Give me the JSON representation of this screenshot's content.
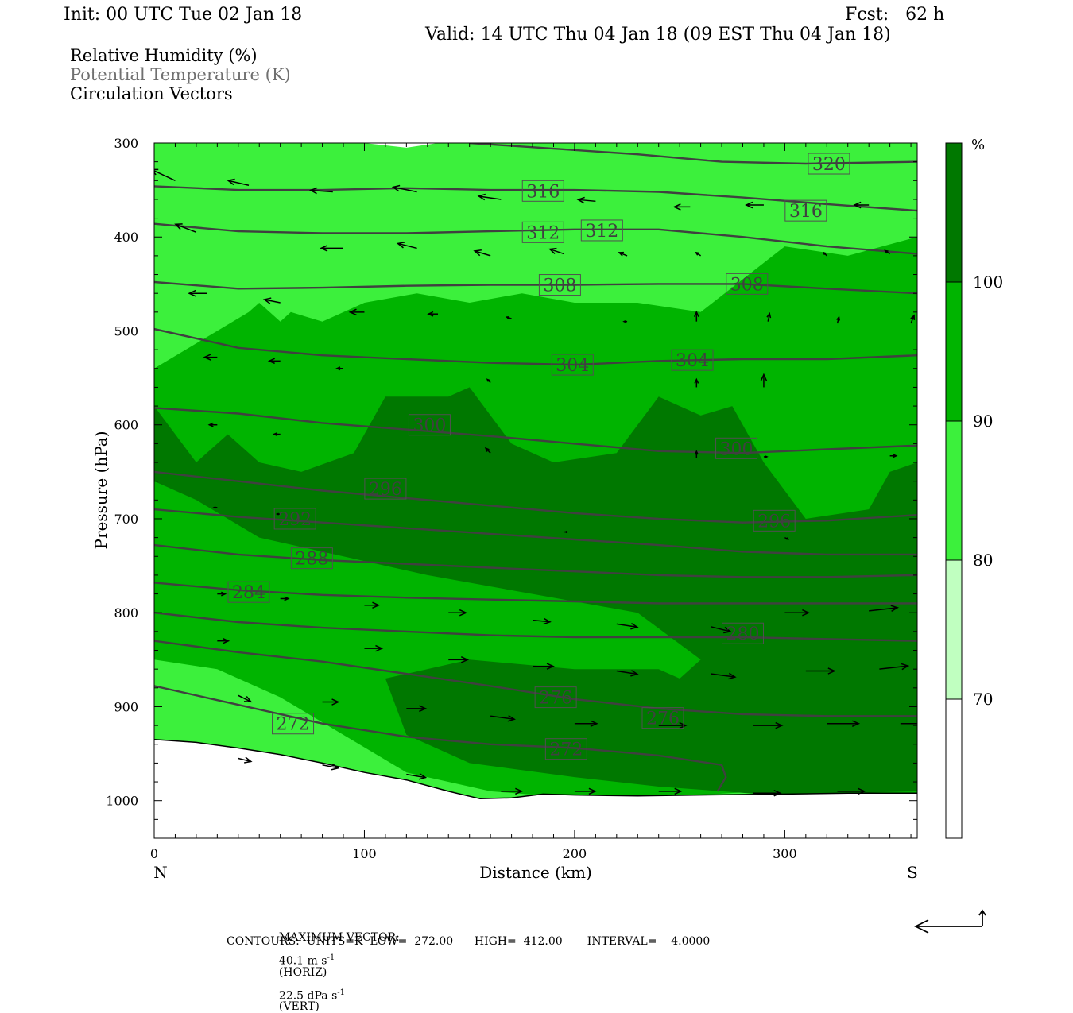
{
  "header": {
    "init": "Init: 00 UTC Tue 02 Jan 18",
    "fcst": "Fcst:   62 h",
    "valid": "Valid: 14 UTC Thu 04 Jan 18 (09 EST Thu 04 Jan 18)"
  },
  "fields": [
    {
      "label": "Relative Humidity (%)",
      "color": "#000000"
    },
    {
      "label": "Potential Temperature (K)",
      "color": "#707070"
    },
    {
      "label": "Circulation Vectors",
      "color": "#000000"
    }
  ],
  "chart_data": {
    "type": "cross-section",
    "xlabel": "Distance (km)",
    "ylabel": "Pressure (hPa)",
    "xlim": [
      0,
      363
    ],
    "ylim": [
      1040,
      300
    ],
    "x_ticks": [
      0,
      100,
      200,
      300
    ],
    "y_ticks": [
      300,
      400,
      500,
      600,
      700,
      800,
      900,
      1000
    ],
    "x_end_labels": {
      "left": "N",
      "right": "S"
    },
    "colorbar": {
      "unit": "%",
      "levels": [
        70,
        80,
        90,
        100
      ],
      "colors": [
        "#ffffff",
        "#c0ffc0",
        "#3cf03c",
        "#00b400",
        "#007800"
      ]
    },
    "terrain": {
      "x": [
        0,
        20,
        40,
        60,
        80,
        100,
        120,
        140,
        155,
        170,
        185,
        200,
        230,
        260,
        300,
        330,
        363
      ],
      "p": [
        935,
        938,
        944,
        951,
        960,
        970,
        978,
        990,
        998,
        997,
        993,
        994,
        995,
        994,
        993,
        992,
        992
      ]
    },
    "theta_contours": [
      {
        "value": 272,
        "x": [
          0,
          40,
          80,
          120,
          160,
          200,
          240,
          270,
          272,
          268
        ],
        "p": [
          878,
          898,
          918,
          932,
          940,
          944,
          952,
          962,
          975,
          990
        ]
      },
      {
        "value": 276,
        "x": [
          0,
          40,
          80,
          120,
          160,
          200,
          240,
          280,
          320,
          363
        ],
        "p": [
          830,
          842,
          852,
          865,
          878,
          892,
          902,
          908,
          910,
          910
        ]
      },
      {
        "value": 280,
        "x": [
          0,
          40,
          80,
          120,
          160,
          200,
          240,
          280,
          320,
          363
        ],
        "p": [
          800,
          810,
          816,
          820,
          824,
          826,
          826,
          826,
          828,
          830
        ]
      },
      {
        "value": 284,
        "x": [
          0,
          40,
          80,
          120,
          160,
          200,
          240,
          280,
          320,
          363
        ],
        "p": [
          768,
          776,
          781,
          784,
          786,
          788,
          790,
          790,
          790,
          790
        ]
      },
      {
        "value": 288,
        "x": [
          0,
          40,
          80,
          120,
          160,
          200,
          240,
          280,
          320,
          363
        ],
        "p": [
          728,
          738,
          744,
          748,
          752,
          756,
          760,
          762,
          762,
          760
        ]
      },
      {
        "value": 292,
        "x": [
          0,
          40,
          80,
          120,
          160,
          200,
          240,
          280,
          320,
          363
        ],
        "p": [
          690,
          698,
          704,
          710,
          716,
          722,
          728,
          735,
          738,
          738
        ]
      },
      {
        "value": 296,
        "x": [
          0,
          40,
          80,
          120,
          160,
          200,
          240,
          280,
          320,
          363
        ],
        "p": [
          650,
          660,
          670,
          678,
          686,
          694,
          700,
          704,
          702,
          696
        ]
      },
      {
        "value": 300,
        "x": [
          0,
          40,
          80,
          120,
          160,
          200,
          240,
          280,
          320,
          363
        ],
        "p": [
          582,
          588,
          598,
          605,
          612,
          620,
          628,
          630,
          626,
          622
        ]
      },
      {
        "value": 304,
        "x": [
          0,
          40,
          80,
          120,
          160,
          200,
          240,
          280,
          320,
          363
        ],
        "p": [
          498,
          518,
          526,
          530,
          534,
          536,
          532,
          530,
          530,
          526
        ]
      },
      {
        "value": 308,
        "x": [
          0,
          40,
          80,
          120,
          160,
          200,
          240,
          280,
          320,
          363
        ],
        "p": [
          448,
          455,
          454,
          452,
          451,
          451,
          450,
          450,
          455,
          460
        ]
      },
      {
        "value": 312,
        "x": [
          0,
          40,
          80,
          120,
          160,
          200,
          240,
          280,
          320,
          363
        ],
        "p": [
          386,
          394,
          396,
          396,
          394,
          392,
          392,
          400,
          410,
          418
        ]
      },
      {
        "value": 316,
        "x": [
          0,
          40,
          80,
          120,
          160,
          200,
          240,
          280,
          320,
          363
        ],
        "p": [
          346,
          350,
          350,
          348,
          350,
          350,
          352,
          358,
          365,
          372
        ]
      },
      {
        "value": 320,
        "x": [
          150,
          190,
          230,
          270,
          310,
          363
        ],
        "p": [
          300,
          306,
          312,
          320,
          322,
          320
        ]
      }
    ],
    "contour_labels": [
      {
        "text": "320",
        "x": 321,
        "p": 322
      },
      {
        "text": "316",
        "x": 185,
        "p": 351
      },
      {
        "text": "316",
        "x": 310,
        "p": 372
      },
      {
        "text": "312",
        "x": 185,
        "p": 395
      },
      {
        "text": "312",
        "x": 213,
        "p": 393
      },
      {
        "text": "308",
        "x": 193,
        "p": 451
      },
      {
        "text": "308",
        "x": 282,
        "p": 450
      },
      {
        "text": "304",
        "x": 199,
        "p": 536
      },
      {
        "text": "304",
        "x": 256,
        "p": 531
      },
      {
        "text": "300",
        "x": 131,
        "p": 600
      },
      {
        "text": "300",
        "x": 277,
        "p": 625
      },
      {
        "text": "296",
        "x": 110,
        "p": 668
      },
      {
        "text": "296",
        "x": 295,
        "p": 702
      },
      {
        "text": "292",
        "x": 67,
        "p": 700
      },
      {
        "text": "288",
        "x": 75,
        "p": 742
      },
      {
        "text": "284",
        "x": 45,
        "p": 778
      },
      {
        "text": "280",
        "x": 280,
        "p": 822
      },
      {
        "text": "276",
        "x": 191,
        "p": 890
      },
      {
        "text": "276",
        "x": 242,
        "p": 912
      },
      {
        "text": "272",
        "x": 66,
        "p": 918
      },
      {
        "text": "272",
        "x": 196,
        "p": 945
      }
    ],
    "rh_regions": [
      {
        "level": 80,
        "x": [
          0,
          363,
          363,
          0
        ],
        "p": [
          300,
          300,
          1000,
          1000
        ]
      },
      {
        "level": 70,
        "x": [
          15,
          60,
          100,
          120,
          135,
          150,
          170,
          185,
          200,
          230,
          250,
          290,
          330,
          363
        ],
        "p": [
          300,
          300,
          300,
          305,
          300,
          300,
          300,
          300,
          300,
          300,
          300,
          300,
          300,
          300
        ]
      },
      {
        "level": 90,
        "x": [
          0,
          30,
          45,
          50,
          60,
          65,
          80,
          100,
          125,
          150,
          175,
          200,
          230,
          260,
          300,
          330,
          363,
          363,
          330,
          290,
          250,
          200,
          160,
          120,
          90,
          60,
          30,
          0
        ],
        "p": [
          540,
          500,
          480,
          470,
          490,
          480,
          490,
          470,
          460,
          470,
          460,
          470,
          470,
          480,
          410,
          420,
          400,
          995,
          992,
          990,
          995,
          997,
          990,
          970,
          930,
          890,
          860,
          850
        ]
      },
      {
        "level": 100,
        "x": [
          0,
          20,
          35,
          50,
          70,
          95,
          110,
          140,
          150,
          170,
          190,
          220,
          240,
          260,
          275,
          290,
          310,
          340,
          350,
          363,
          363,
          330,
          300,
          270,
          240,
          200,
          150,
          120,
          110,
          150,
          200,
          240,
          250,
          260,
          230,
          180,
          130,
          90,
          50,
          20,
          0
        ],
        "p": [
          580,
          640,
          610,
          640,
          650,
          630,
          570,
          570,
          560,
          620,
          640,
          630,
          570,
          590,
          580,
          640,
          700,
          690,
          650,
          640,
          990,
          992,
          995,
          990,
          985,
          975,
          960,
          930,
          870,
          850,
          860,
          860,
          870,
          850,
          800,
          780,
          760,
          740,
          720,
          680,
          660
        ]
      }
    ],
    "vectors": [
      {
        "x": 10,
        "p": 340,
        "dx": -30,
        "dy": -14
      },
      {
        "x": 45,
        "p": 345,
        "dx": -26,
        "dy": -6
      },
      {
        "x": 85,
        "p": 352,
        "dx": -28,
        "dy": -2
      },
      {
        "x": 125,
        "p": 352,
        "dx": -30,
        "dy": -6
      },
      {
        "x": 165,
        "p": 360,
        "dx": -28,
        "dy": -4
      },
      {
        "x": 210,
        "p": 362,
        "dx": -22,
        "dy": -2
      },
      {
        "x": 255,
        "p": 368,
        "dx": -20,
        "dy": 0
      },
      {
        "x": 290,
        "p": 366,
        "dx": -22,
        "dy": 0
      },
      {
        "x": 340,
        "p": 366,
        "dx": -18,
        "dy": 0
      },
      {
        "x": 20,
        "p": 395,
        "dx": -26,
        "dy": -10
      },
      {
        "x": 90,
        "p": 412,
        "dx": -28,
        "dy": 0
      },
      {
        "x": 125,
        "p": 412,
        "dx": -24,
        "dy": -6
      },
      {
        "x": 160,
        "p": 420,
        "dx": -20,
        "dy": -6
      },
      {
        "x": 195,
        "p": 418,
        "dx": -18,
        "dy": -6
      },
      {
        "x": 225,
        "p": 420,
        "dx": -10,
        "dy": -4
      },
      {
        "x": 260,
        "p": 420,
        "dx": -6,
        "dy": -4
      },
      {
        "x": 320,
        "p": 420,
        "dx": -4,
        "dy": -4
      },
      {
        "x": 350,
        "p": 418,
        "dx": -6,
        "dy": -4
      },
      {
        "x": 25,
        "p": 460,
        "dx": -22,
        "dy": 0
      },
      {
        "x": 60,
        "p": 470,
        "dx": -20,
        "dy": -4
      },
      {
        "x": 100,
        "p": 480,
        "dx": -18,
        "dy": 0
      },
      {
        "x": 135,
        "p": 482,
        "dx": -12,
        "dy": 0
      },
      {
        "x": 170,
        "p": 487,
        "dx": -6,
        "dy": -2
      },
      {
        "x": 225,
        "p": 490,
        "dx": -4,
        "dy": 0
      },
      {
        "x": 258,
        "p": 490,
        "dx": 0,
        "dy": -12
      },
      {
        "x": 292,
        "p": 490,
        "dx": 2,
        "dy": -10
      },
      {
        "x": 325,
        "p": 492,
        "dx": 2,
        "dy": -8
      },
      {
        "x": 360,
        "p": 492,
        "dx": 4,
        "dy": -10
      },
      {
        "x": 30,
        "p": 528,
        "dx": -16,
        "dy": 0
      },
      {
        "x": 60,
        "p": 532,
        "dx": -14,
        "dy": 0
      },
      {
        "x": 90,
        "p": 540,
        "dx": -8,
        "dy": 0
      },
      {
        "x": 160,
        "p": 555,
        "dx": -4,
        "dy": -4
      },
      {
        "x": 258,
        "p": 560,
        "dx": 0,
        "dy": -10
      },
      {
        "x": 290,
        "p": 560,
        "dx": 0,
        "dy": -16
      },
      {
        "x": 30,
        "p": 600,
        "dx": -10,
        "dy": 0
      },
      {
        "x": 60,
        "p": 610,
        "dx": -8,
        "dy": 0
      },
      {
        "x": 160,
        "p": 630,
        "dx": -6,
        "dy": -6
      },
      {
        "x": 258,
        "p": 635,
        "dx": 0,
        "dy": -8
      },
      {
        "x": 290,
        "p": 634,
        "dx": 4,
        "dy": 0
      },
      {
        "x": 350,
        "p": 633,
        "dx": 8,
        "dy": 0
      },
      {
        "x": 30,
        "p": 688,
        "dx": -4,
        "dy": 0
      },
      {
        "x": 60,
        "p": 695,
        "dx": -4,
        "dy": 0
      },
      {
        "x": 195,
        "p": 714,
        "dx": 4,
        "dy": 0
      },
      {
        "x": 300,
        "p": 720,
        "dx": 4,
        "dy": 2
      },
      {
        "x": 30,
        "p": 780,
        "dx": 10,
        "dy": 0
      },
      {
        "x": 60,
        "p": 785,
        "dx": 10,
        "dy": 0
      },
      {
        "x": 100,
        "p": 792,
        "dx": 18,
        "dy": 0
      },
      {
        "x": 140,
        "p": 800,
        "dx": 22,
        "dy": 0
      },
      {
        "x": 180,
        "p": 808,
        "dx": 22,
        "dy": 2
      },
      {
        "x": 220,
        "p": 812,
        "dx": 26,
        "dy": 4
      },
      {
        "x": 265,
        "p": 815,
        "dx": 24,
        "dy": 6
      },
      {
        "x": 300,
        "p": 800,
        "dx": 30,
        "dy": 0
      },
      {
        "x": 340,
        "p": 798,
        "dx": 36,
        "dy": -4
      },
      {
        "x": 30,
        "p": 830,
        "dx": 14,
        "dy": 0
      },
      {
        "x": 100,
        "p": 838,
        "dx": 22,
        "dy": 0
      },
      {
        "x": 140,
        "p": 850,
        "dx": 24,
        "dy": 0
      },
      {
        "x": 180,
        "p": 857,
        "dx": 26,
        "dy": 0
      },
      {
        "x": 220,
        "p": 862,
        "dx": 26,
        "dy": 4
      },
      {
        "x": 265,
        "p": 865,
        "dx": 30,
        "dy": 4
      },
      {
        "x": 310,
        "p": 862,
        "dx": 36,
        "dy": 0
      },
      {
        "x": 345,
        "p": 860,
        "dx": 36,
        "dy": -4
      },
      {
        "x": 40,
        "p": 888,
        "dx": 16,
        "dy": 8
      },
      {
        "x": 80,
        "p": 895,
        "dx": 20,
        "dy": 0
      },
      {
        "x": 120,
        "p": 902,
        "dx": 24,
        "dy": 0
      },
      {
        "x": 160,
        "p": 910,
        "dx": 30,
        "dy": 4
      },
      {
        "x": 200,
        "p": 918,
        "dx": 28,
        "dy": 0
      },
      {
        "x": 240,
        "p": 920,
        "dx": 34,
        "dy": 0
      },
      {
        "x": 285,
        "p": 920,
        "dx": 36,
        "dy": 0
      },
      {
        "x": 320,
        "p": 918,
        "dx": 40,
        "dy": 0
      },
      {
        "x": 355,
        "p": 918,
        "dx": 30,
        "dy": 0
      },
      {
        "x": 40,
        "p": 955,
        "dx": 16,
        "dy": 4
      },
      {
        "x": 80,
        "p": 962,
        "dx": 20,
        "dy": 4
      },
      {
        "x": 120,
        "p": 972,
        "dx": 24,
        "dy": 4
      },
      {
        "x": 165,
        "p": 990,
        "dx": 26,
        "dy": 0
      },
      {
        "x": 200,
        "p": 990,
        "dx": 26,
        "dy": 0
      },
      {
        "x": 240,
        "p": 990,
        "dx": 28,
        "dy": 0
      },
      {
        "x": 285,
        "p": 992,
        "dx": 34,
        "dy": 0
      },
      {
        "x": 325,
        "p": 990,
        "dx": 34,
        "dy": 0
      }
    ],
    "footer": {
      "max_vector_label": "MAXIMUM VECTOR:",
      "max_vector_horiz": "40.1 m s",
      "horiz_tag": "(HORIZ)",
      "max_vector_vert": "22.5 dPa s",
      "vert_tag": "(VERT)",
      "exponent": "-1",
      "contours": "CONTOURS:  UNITS=K  LOW=  272.00      HIGH=  412.00       INTERVAL=    4.0000"
    }
  }
}
